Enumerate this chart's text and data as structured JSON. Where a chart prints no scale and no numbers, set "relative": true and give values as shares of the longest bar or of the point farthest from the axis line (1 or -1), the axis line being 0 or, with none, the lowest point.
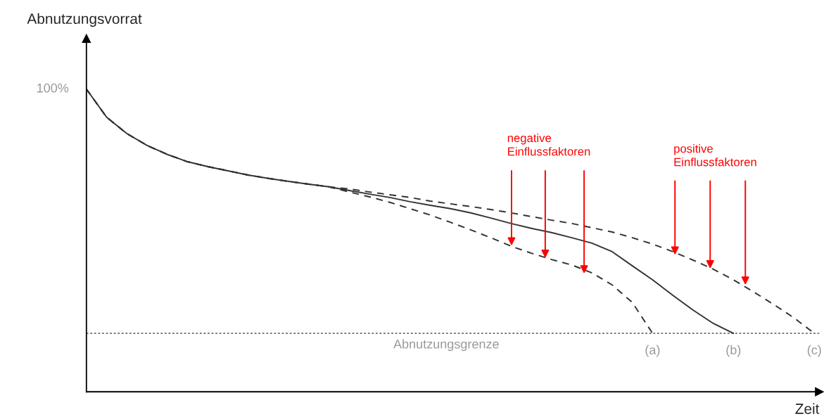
{
  "chart_data": {
    "type": "line",
    "relative": true,
    "xlabel": "Zeit",
    "ylabel": "Abnutzungsvorrat",
    "categories": [
      null,
      null,
      null,
      null,
      null,
      null,
      null,
      null,
      null,
      null,
      null,
      null,
      null,
      null,
      null,
      null,
      null,
      null,
      null,
      null,
      null,
      null,
      null,
      null,
      null,
      null,
      null,
      null,
      null,
      null,
      null,
      null,
      null,
      null,
      null,
      null,
      null
    ],
    "series": [
      {
        "name": "(a)",
        "color": "#333333",
        "line_style": "dashed",
        "values": [
          1.0,
          0.907,
          0.853,
          0.814,
          0.784,
          0.76,
          0.744,
          0.73,
          0.716,
          0.705,
          0.695,
          0.686,
          0.677,
          0.66,
          0.644,
          0.626,
          0.605,
          0.584,
          0.56,
          0.535,
          0.509,
          0.481,
          0.458,
          0.437,
          0.419,
          0.393,
          0.353,
          0.295,
          0.193,
          null,
          null,
          null,
          null,
          null,
          null,
          null,
          null
        ]
      },
      {
        "name": "(b)",
        "color": "#333333",
        "line_style": "solid",
        "values": [
          1.0,
          0.907,
          0.853,
          0.814,
          0.784,
          0.76,
          0.744,
          0.73,
          0.716,
          0.705,
          0.695,
          0.686,
          0.677,
          0.665,
          0.653,
          0.642,
          0.628,
          0.616,
          0.605,
          0.591,
          0.574,
          0.556,
          0.54,
          0.526,
          0.509,
          0.491,
          0.463,
          0.416,
          0.37,
          0.319,
          0.27,
          0.226,
          0.193,
          null,
          null,
          null,
          null
        ]
      },
      {
        "name": "(c)",
        "color": "#333333",
        "line_style": "dashed",
        "values": [
          1.0,
          0.907,
          0.853,
          0.814,
          0.784,
          0.76,
          0.744,
          0.73,
          0.716,
          0.705,
          0.695,
          0.686,
          0.677,
          0.67,
          0.66,
          0.651,
          0.642,
          0.63,
          0.621,
          0.612,
          0.602,
          0.591,
          0.579,
          0.567,
          0.556,
          0.542,
          0.528,
          0.509,
          0.488,
          0.463,
          0.435,
          0.405,
          0.37,
          0.33,
          0.288,
          0.244,
          0.193
        ]
      }
    ],
    "ref_lines": [
      {
        "axis": "y",
        "value": 0.193,
        "label": "Abnutzungsgrenze",
        "color": "#333333",
        "line_style": "dotted"
      }
    ],
    "annotations": [
      "100%",
      "negative\nEinflussfaktoren",
      "positive\nEinflussfaktoren"
    ]
  }
}
